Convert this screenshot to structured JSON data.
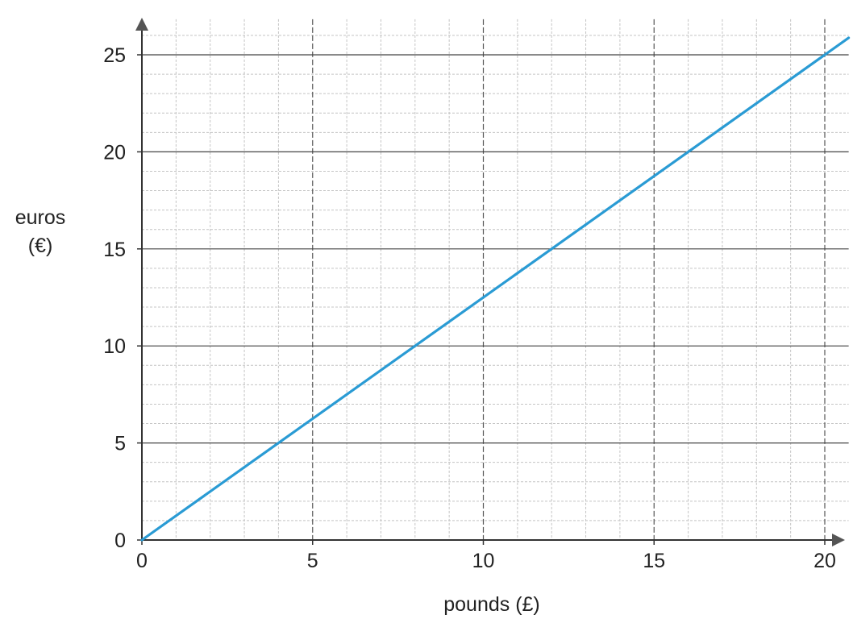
{
  "chart_data": {
    "type": "line",
    "xlabel": "pounds (£)",
    "ylabel_lines": [
      "euros",
      "(€)"
    ],
    "xlim": [
      0,
      20.7
    ],
    "ylim": [
      0,
      26.5
    ],
    "x_ticks": [
      0,
      5,
      10,
      15,
      20
    ],
    "y_ticks": [
      0,
      5,
      10,
      15,
      20,
      25
    ],
    "grid": true,
    "series": [
      {
        "color": "#2a9bd4",
        "x": [
          0,
          4,
          8,
          12,
          16,
          20,
          20.7
        ],
        "y": [
          0,
          5,
          10,
          15,
          20,
          25,
          25.875
        ]
      }
    ]
  }
}
